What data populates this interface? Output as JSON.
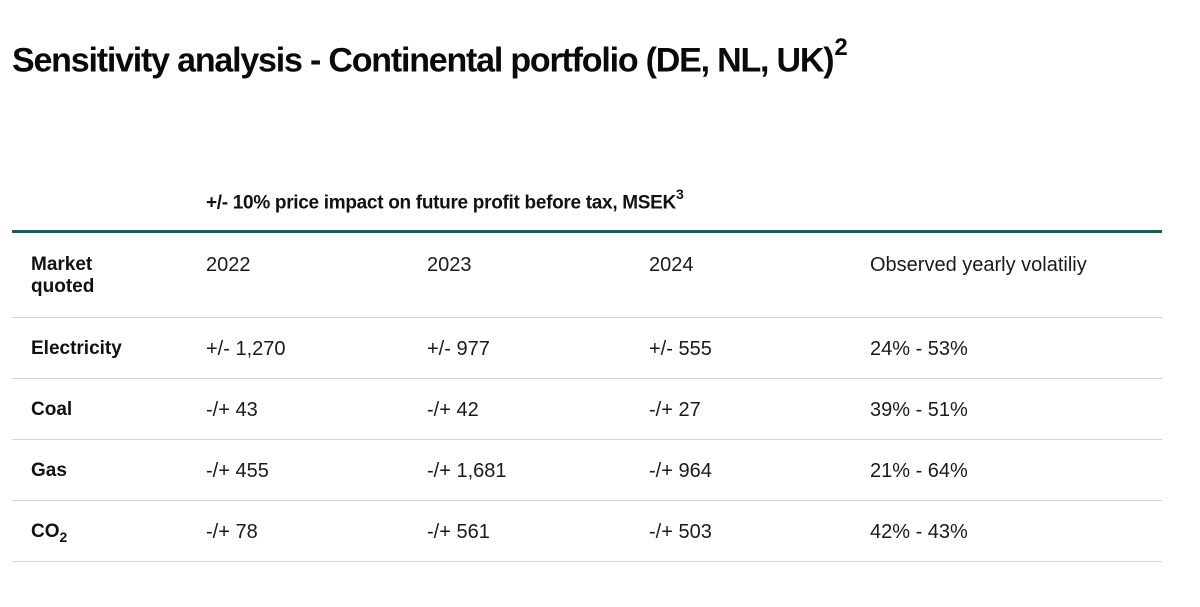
{
  "title": {
    "main": "Sensitivity analysis - Continental portfolio (DE, NL, UK)",
    "footnote": "2"
  },
  "subtitle": {
    "text": "+/- 10% price impact on future profit before tax, MSEK",
    "footnote": "3"
  },
  "table": {
    "headers": [
      "Market quoted",
      "2022",
      "2023",
      "2024",
      "Observed yearly volatiliy"
    ],
    "rows": [
      {
        "market": "Electricity",
        "market_sub": "",
        "y2022": "+/- 1,270",
        "y2023": "+/- 977",
        "y2024": "+/- 555",
        "volatility": "24% - 53%"
      },
      {
        "market": "Coal",
        "market_sub": "",
        "y2022": "-/+  43",
        "y2023": "-/+ 42",
        "y2024": "-/+  27",
        "volatility": "39% - 51%"
      },
      {
        "market": "Gas",
        "market_sub": "",
        "y2022": "-/+  455",
        "y2023": "-/+  1,681",
        "y2024": "-/+  964",
        "volatility": "21% - 64%"
      },
      {
        "market": "CO",
        "market_sub": "2",
        "y2022": "-/+  78",
        "y2023": "-/+  561",
        "y2024": "-/+  503",
        "volatility": "42% - 43%"
      }
    ]
  },
  "colors": {
    "accent_rule": "#1f5a5a",
    "row_divider": "#d4d4d4",
    "text": "#111111"
  }
}
